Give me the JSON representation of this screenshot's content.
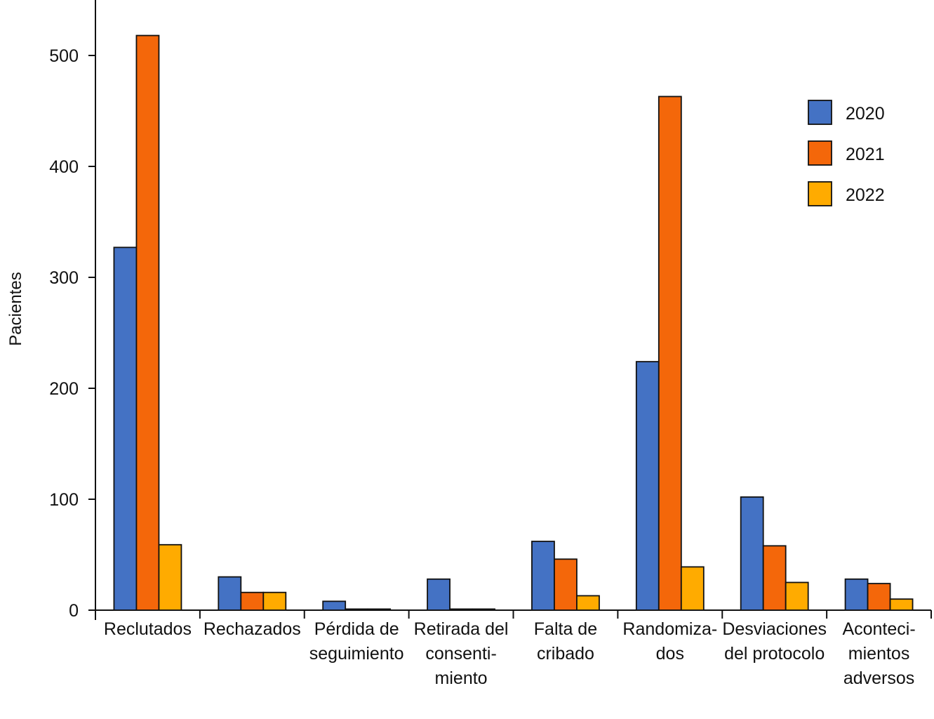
{
  "chart_data": {
    "type": "bar",
    "title": "",
    "xlabel": "",
    "ylabel": "Pacientes",
    "ylim": [
      0,
      550
    ],
    "yticks": [
      0,
      100,
      200,
      300,
      400,
      500
    ],
    "grid": false,
    "legend_position": "top-right",
    "categories": [
      [
        "Reclutados"
      ],
      [
        "Rechazados"
      ],
      [
        "Pérdida de",
        "seguimiento"
      ],
      [
        "Retirada del",
        "consenti-",
        "miento"
      ],
      [
        "Falta de",
        "cribado"
      ],
      [
        "Randomiza-",
        "dos"
      ],
      [
        "Desviaciones",
        "del protocolo"
      ],
      [
        "Aconteci-",
        "mientos",
        "adversos"
      ]
    ],
    "series": [
      {
        "name": "2020",
        "color": "#4472C4",
        "values": [
          327,
          30,
          8,
          28,
          62,
          224,
          102,
          28
        ]
      },
      {
        "name": "2021",
        "color": "#F4670A",
        "values": [
          518,
          16,
          1,
          1,
          46,
          463,
          58,
          24
        ]
      },
      {
        "name": "2022",
        "color": "#FFAB00",
        "values": [
          59,
          16,
          1,
          1,
          13,
          39,
          25,
          10
        ]
      }
    ]
  }
}
